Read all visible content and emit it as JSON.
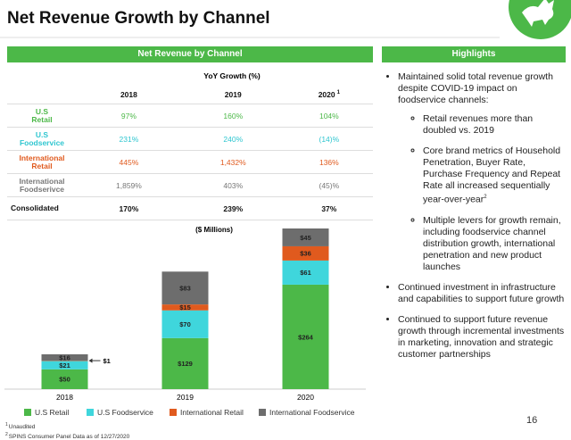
{
  "title": "Net Revenue Growth by Channel",
  "table": {
    "header": "Net Revenue by Channel",
    "group_header": "YoY Growth (%)",
    "columns": [
      "2018",
      "2019",
      "2020"
    ],
    "superscript": "1",
    "rows": [
      {
        "label": [
          "U.S",
          "Retail"
        ],
        "color": "#4cb848",
        "cells": [
          "97%",
          "160%",
          "104%"
        ]
      },
      {
        "label": [
          "U.S",
          "Foodservice"
        ],
        "color": "#2fc6d0",
        "cells": [
          "231%",
          "240%",
          "(14)%"
        ]
      },
      {
        "label": [
          "International",
          "Retail"
        ],
        "color": "#e05a1e",
        "cells": [
          "445%",
          "1,432%",
          "136%"
        ]
      },
      {
        "label": [
          "International",
          "Foodserivce"
        ],
        "color": "#777777",
        "cells": [
          "1,859%",
          "403%",
          "(45)%"
        ]
      },
      {
        "label": [
          "Consolidated"
        ],
        "color": "#111111",
        "cells": [
          "170%",
          "239%",
          "37%"
        ]
      }
    ]
  },
  "highlights": {
    "header": "Highlights",
    "items": [
      {
        "text": "Maintained solid total revenue growth despite COVID-19 impact on foodservice channels:",
        "subitems": [
          {
            "text": "Retail revenues more than doubled vs. 2019"
          },
          {
            "text": "Core brand metrics of Household Penetration, Buyer Rate, Purchase Frequency and Repeat Rate all increased sequentially year-over-year",
            "note": "2"
          },
          {
            "text": "Multiple levers for growth remain, including foodservice channel distribution growth, international penetration and new product launches"
          }
        ]
      },
      {
        "text": "Continued investment in infrastructure and capabilities to support future growth",
        "subitems": []
      },
      {
        "text": "Continued to support future revenue growth through incremental investments in marketing, innovation and strategic customer partnerships",
        "subitems": []
      }
    ]
  },
  "footnotes": [
    {
      "mark": "1",
      "text": "Unaudited"
    },
    {
      "mark": "2",
      "text": "SPINS Consumer Panel Data as of 12/27/2020"
    }
  ],
  "page_number": "16",
  "chart_data": {
    "type": "stacked_bar",
    "title": "($ Millions)",
    "categories": [
      "2018",
      "2019",
      "2020"
    ],
    "series": [
      {
        "name": "U.S Retail",
        "color": "#4cb848",
        "values": [
          50,
          129,
          264
        ],
        "value_labels": [
          "$50",
          "$129",
          "$264"
        ]
      },
      {
        "name": "U.S Foodservice",
        "color": "#3fd6dc",
        "values": [
          21,
          70,
          61
        ],
        "value_labels": [
          "$21",
          "$70",
          "$61"
        ]
      },
      {
        "name": "International Retail",
        "color": "#e05a1e",
        "values": [
          1,
          15,
          36
        ],
        "value_labels": [
          "$1",
          "$15",
          "$36"
        ]
      },
      {
        "name": "International Foodservice",
        "color": "#6d6d6d",
        "values": [
          16,
          83,
          45
        ],
        "value_labels": [
          "$16",
          "$83",
          "$45"
        ]
      }
    ]
  }
}
